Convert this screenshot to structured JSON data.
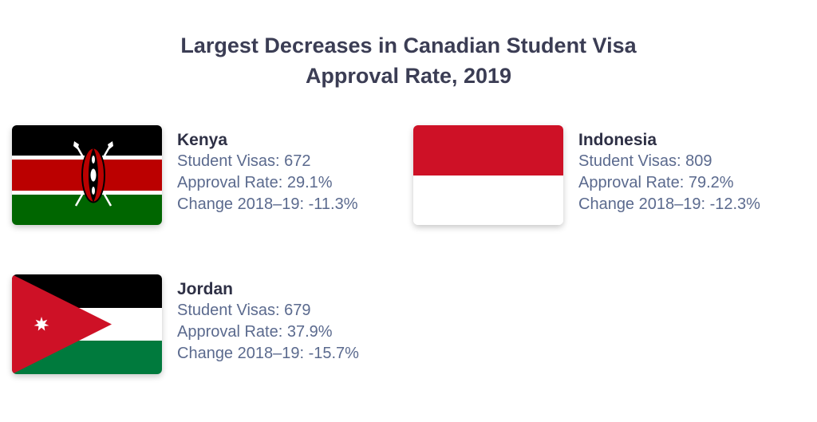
{
  "title": {
    "line1": "Largest Decreases in Canadian Student Visa",
    "line2": "Approval Rate, 2019"
  },
  "labels": {
    "visas": "Student Visas:",
    "approval": "Approval Rate:",
    "change": "Change 2018–19:"
  },
  "countries": [
    {
      "name": "Kenya",
      "student_visas": "672",
      "approval_rate": "29.1%",
      "change": "-11.3%",
      "flag_icon": "kenya-flag-icon",
      "flag_colors": [
        "#000000",
        "#ffffff",
        "#bb0000",
        "#006600"
      ]
    },
    {
      "name": "Indonesia",
      "student_visas": "809",
      "approval_rate": "79.2%",
      "change": "-12.3%",
      "flag_icon": "indonesia-flag-icon",
      "flag_colors": [
        "#ce1126",
        "#ffffff"
      ]
    },
    {
      "name": "Jordan",
      "student_visas": "679",
      "approval_rate": "37.9%",
      "change": "-15.7%",
      "flag_icon": "jordan-flag-icon",
      "flag_colors": [
        "#000000",
        "#ffffff",
        "#007a3d",
        "#ce1126"
      ]
    }
  ]
}
